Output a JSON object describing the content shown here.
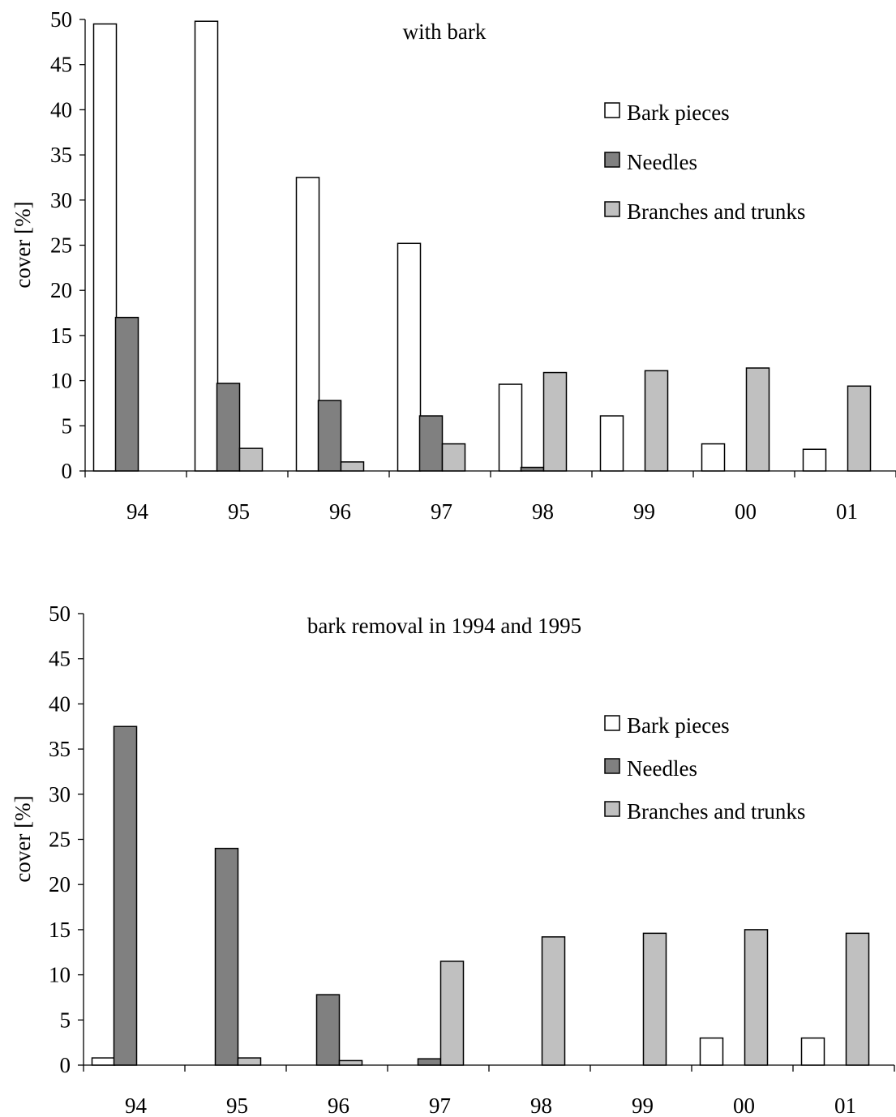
{
  "chart_data": [
    {
      "type": "bar",
      "title": "with bark",
      "ylabel": "cover [%]",
      "xlabel": "",
      "ylim": [
        0,
        50
      ],
      "yticks": [
        0,
        5,
        10,
        15,
        20,
        25,
        30,
        35,
        40,
        45,
        50
      ],
      "categories": [
        "94",
        "95",
        "96",
        "97",
        "98",
        "99",
        "00",
        "01"
      ],
      "legend_position": "right",
      "series": [
        {
          "name": "Bark pieces",
          "color": "#ffffff",
          "values": [
            49.5,
            49.8,
            32.5,
            25.2,
            9.6,
            6.1,
            3.0,
            2.4
          ]
        },
        {
          "name": "Needles",
          "color": "#808080",
          "values": [
            17.0,
            9.7,
            7.8,
            6.1,
            0.4,
            0,
            0,
            0
          ]
        },
        {
          "name": "Branches and trunks",
          "color": "#c0c0c0",
          "values": [
            0,
            2.5,
            1.0,
            3.0,
            10.9,
            11.1,
            11.4,
            9.4
          ]
        }
      ]
    },
    {
      "type": "bar",
      "title": "bark removal in 1994 and 1995",
      "ylabel": "cover [%]",
      "xlabel": "",
      "ylim": [
        0,
        50
      ],
      "yticks": [
        0,
        5,
        10,
        15,
        20,
        25,
        30,
        35,
        40,
        45,
        50
      ],
      "categories": [
        "94",
        "95",
        "96",
        "97",
        "98",
        "99",
        "00",
        "01"
      ],
      "legend_position": "right",
      "series": [
        {
          "name": "Bark pieces",
          "color": "#ffffff",
          "values": [
            0.8,
            0,
            0,
            0,
            0,
            0,
            3.0,
            3.0
          ]
        },
        {
          "name": "Needles",
          "color": "#808080",
          "values": [
            37.5,
            24.0,
            7.8,
            0.7,
            0,
            0,
            0,
            0
          ]
        },
        {
          "name": "Branches and trunks",
          "color": "#c0c0c0",
          "values": [
            0,
            0.8,
            0.5,
            11.5,
            14.2,
            14.6,
            15.0,
            14.6
          ]
        }
      ]
    }
  ]
}
